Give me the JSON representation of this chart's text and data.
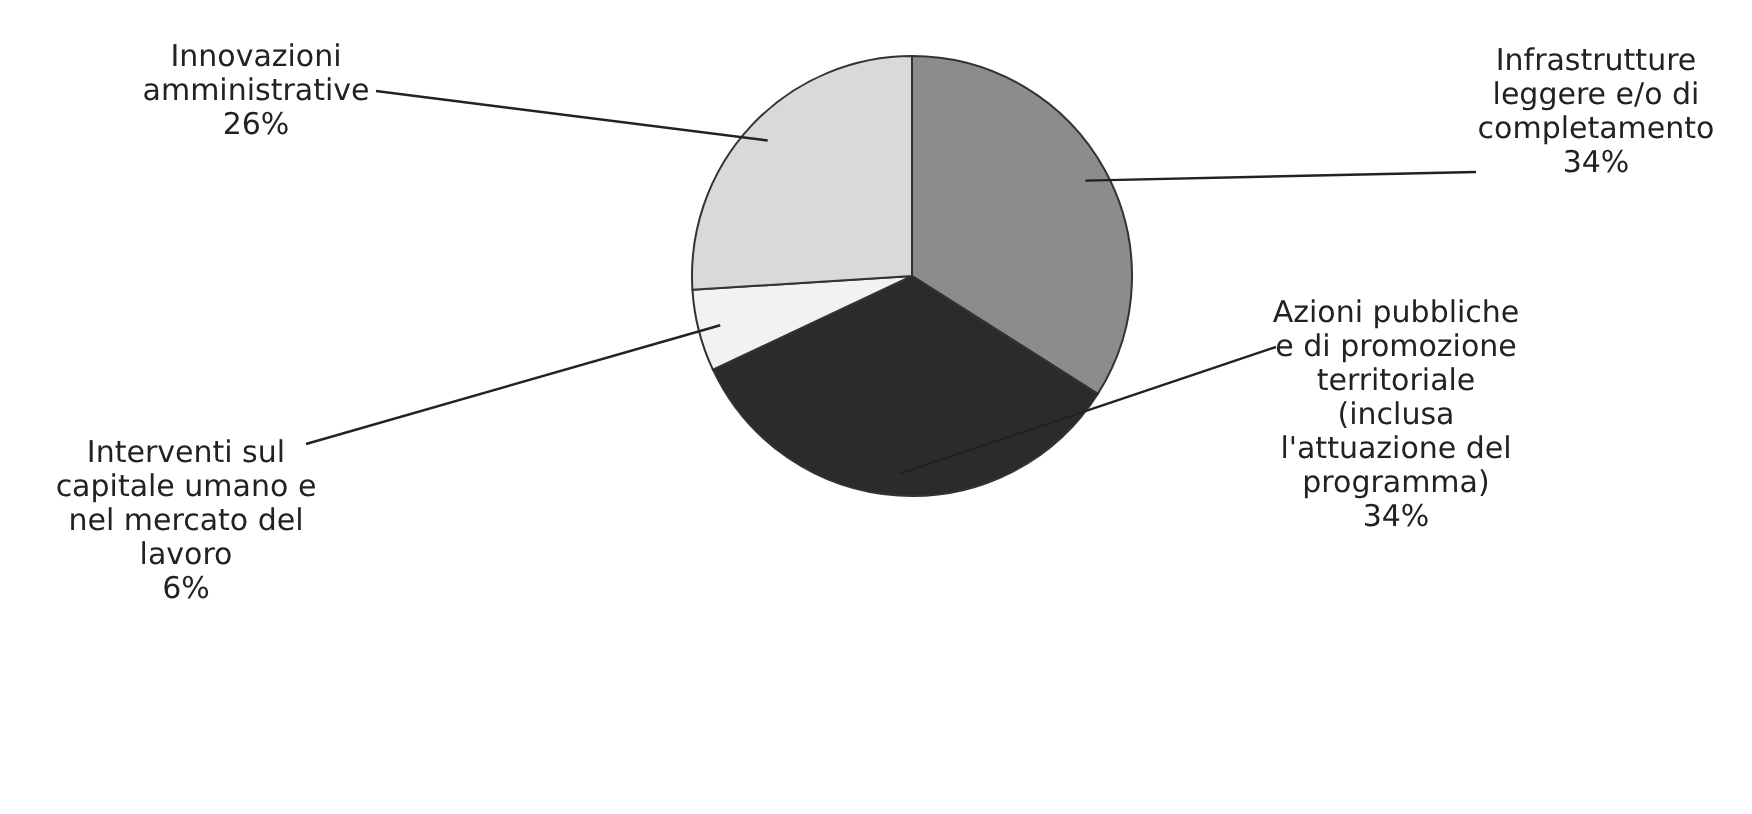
{
  "chart_data": {
    "type": "pie",
    "categories": [
      "Infrastrutture\nleggere e/o di\ncompletamento",
      "Azioni pubbliche\ne di promozione\nterritoriale\n(inclusa\nl'attuazione del\nprogramma)",
      "Interventi sul\ncapitale umano e\nnel mercato del\nlavoro",
      "Innovazioni\namministrative"
    ],
    "values": [
      34,
      34,
      6,
      26
    ],
    "value_labels": [
      "34%",
      "34%",
      "6%",
      "26%"
    ],
    "colors": [
      "#8c8c8c",
      "#2b2b2b",
      "#f2f2f2",
      "#d9d9d9"
    ]
  }
}
